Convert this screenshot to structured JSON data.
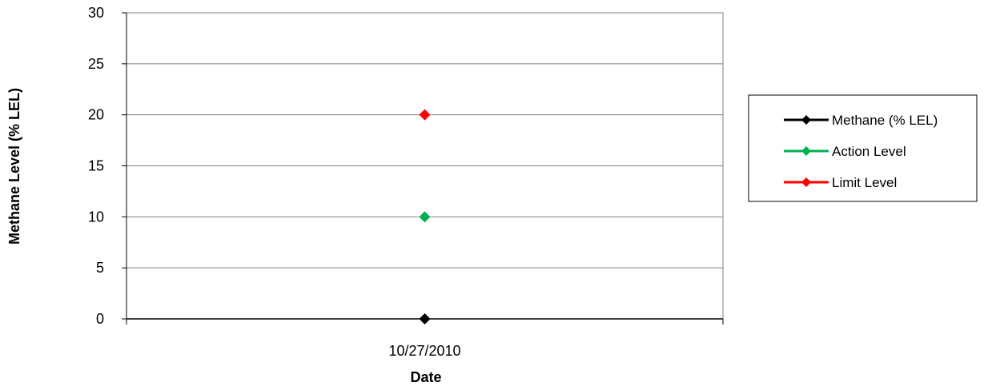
{
  "chart_data": {
    "type": "line",
    "title": "",
    "xlabel": "Date",
    "ylabel": "Methane Level (% LEL)",
    "categories": [
      "10/27/2010"
    ],
    "ylim": [
      0,
      30
    ],
    "yticks": [
      0,
      5,
      10,
      15,
      20,
      25,
      30
    ],
    "grid": true,
    "legend_position": "right",
    "series": [
      {
        "name": "Methane (% LEL)",
        "values": [
          0
        ],
        "color": "#000000",
        "marker": "diamond"
      },
      {
        "name": "Action Level",
        "values": [
          10
        ],
        "color": "#00b050",
        "marker": "diamond"
      },
      {
        "name": "Limit Level",
        "values": [
          20
        ],
        "color": "#ff0000",
        "marker": "diamond"
      }
    ]
  }
}
